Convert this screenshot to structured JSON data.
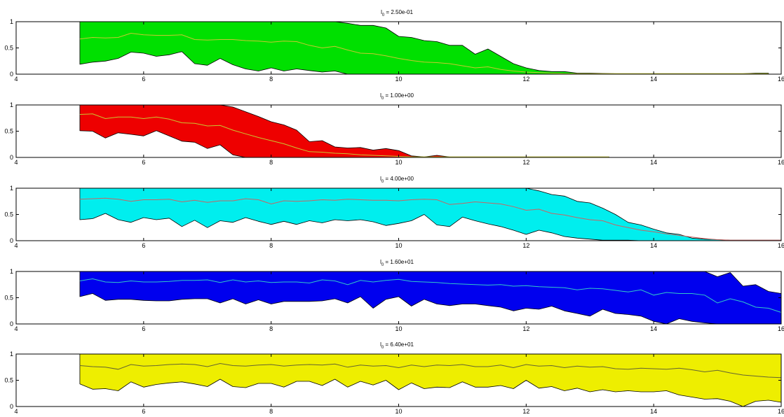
{
  "chart_data": [
    {
      "type": "area",
      "title_var": "l",
      "title_sub": "0",
      "title_value": " = 2.50e-01",
      "fill": "#00e000",
      "mean_color": "#c8c832",
      "xlim": [
        4,
        16
      ],
      "ylim": [
        0,
        1
      ],
      "xticks": [
        4,
        6,
        8,
        10,
        12,
        14,
        16
      ],
      "yticks": [
        0,
        0.5,
        1
      ],
      "xtick_labels": [
        "4",
        "6",
        "8",
        "10",
        "12",
        "14",
        "16"
      ],
      "ytick_labels": [
        "0",
        "0.5",
        "1"
      ],
      "x": [
        5.0,
        5.2,
        5.4,
        5.6,
        5.8,
        6.0,
        6.2,
        6.4,
        6.6,
        6.8,
        7.0,
        7.2,
        7.4,
        7.6,
        7.8,
        8.0,
        8.2,
        8.4,
        8.6,
        8.8,
        9.0,
        9.2,
        9.4,
        9.6,
        9.8,
        10.0,
        10.2,
        10.4,
        10.6,
        10.8,
        11.0,
        11.2,
        11.4,
        11.6,
        11.8,
        12.0,
        12.2,
        12.4,
        12.6,
        12.8,
        13.0,
        13.4,
        13.8,
        14.2,
        14.6,
        15.0,
        15.4,
        15.6,
        15.8
      ],
      "upper": [
        1,
        1,
        1,
        1,
        1,
        1,
        1,
        1,
        1,
        1,
        1,
        1,
        1,
        1,
        1,
        1,
        1,
        1,
        1,
        1,
        1,
        0.97,
        0.93,
        0.93,
        0.88,
        0.72,
        0.7,
        0.64,
        0.62,
        0.55,
        0.55,
        0.38,
        0.48,
        0.34,
        0.2,
        0.12,
        0.07,
        0.05,
        0.05,
        0.02,
        0.02,
        0.01,
        0.01,
        0.01,
        0.01,
        0.01,
        0.01,
        0.02,
        0.02
      ],
      "mean": [
        0.67,
        0.7,
        0.69,
        0.7,
        0.78,
        0.75,
        0.74,
        0.74,
        0.75,
        0.66,
        0.65,
        0.66,
        0.66,
        0.64,
        0.63,
        0.61,
        0.63,
        0.62,
        0.55,
        0.5,
        0.53,
        0.46,
        0.4,
        0.39,
        0.35,
        0.3,
        0.26,
        0.23,
        0.22,
        0.2,
        0.16,
        0.12,
        0.14,
        0.09,
        0.06,
        0.04,
        0.03,
        0.02,
        0.01,
        0.01,
        0.01,
        0.01,
        0.01,
        0.01,
        0.01,
        0.01,
        0.01,
        0.01,
        0.01
      ],
      "lower": [
        0.19,
        0.23,
        0.25,
        0.3,
        0.42,
        0.4,
        0.34,
        0.37,
        0.43,
        0.2,
        0.17,
        0.3,
        0.18,
        0.1,
        0.06,
        0.12,
        0.06,
        0.1,
        0.07,
        0.04,
        0.06,
        0,
        0,
        0,
        0,
        0,
        0,
        0,
        0,
        0,
        0,
        0,
        0,
        0,
        0,
        0,
        0,
        0,
        0,
        0,
        0,
        0,
        0,
        0,
        0,
        0,
        0,
        0,
        0
      ]
    },
    {
      "type": "area",
      "title_var": "l",
      "title_sub": "0",
      "title_value": " = 1.00e+00",
      "fill": "#ee0000",
      "mean_color": "#c8c832",
      "xlim": [
        4,
        16
      ],
      "ylim": [
        0,
        1
      ],
      "xticks": [
        4,
        6,
        8,
        10,
        12,
        14,
        16
      ],
      "yticks": [
        0,
        0.5,
        1
      ],
      "xtick_labels": [
        "4",
        "6",
        "8",
        "10",
        "12",
        "14",
        "16"
      ],
      "ytick_labels": [
        "0",
        "0.5",
        "1"
      ],
      "x": [
        5.0,
        5.2,
        5.4,
        5.6,
        5.8,
        6.0,
        6.2,
        6.4,
        6.6,
        6.8,
        7.0,
        7.2,
        7.4,
        7.6,
        7.8,
        8.0,
        8.2,
        8.4,
        8.6,
        8.8,
        9.0,
        9.2,
        9.4,
        9.6,
        9.8,
        10.0,
        10.2,
        10.4,
        10.6,
        10.8,
        11.0,
        11.5,
        12.0,
        12.5,
        13.0,
        13.3
      ],
      "upper": [
        1,
        1,
        1,
        1,
        1,
        1,
        1,
        1,
        1,
        1,
        1,
        1,
        0.96,
        0.87,
        0.78,
        0.68,
        0.62,
        0.52,
        0.3,
        0.32,
        0.2,
        0.18,
        0.19,
        0.14,
        0.17,
        0.13,
        0.03,
        0.01,
        0.04,
        0.01,
        0.01,
        0.01,
        0.01,
        0.01,
        0.01,
        0.01
      ],
      "mean": [
        0.82,
        0.83,
        0.74,
        0.77,
        0.77,
        0.74,
        0.77,
        0.73,
        0.66,
        0.65,
        0.6,
        0.61,
        0.52,
        0.45,
        0.38,
        0.32,
        0.26,
        0.18,
        0.11,
        0.1,
        0.08,
        0.07,
        0.05,
        0.04,
        0.03,
        0.02,
        0.01,
        0.01,
        0.01,
        0.01,
        0.01,
        0.01,
        0.01,
        0.01,
        0.01,
        0.01
      ],
      "lower": [
        0.51,
        0.5,
        0.37,
        0.47,
        0.44,
        0.41,
        0.51,
        0.41,
        0.31,
        0.29,
        0.17,
        0.24,
        0.05,
        0,
        0,
        0,
        0,
        0,
        0,
        0,
        0,
        0,
        0,
        0,
        0,
        0,
        0,
        0,
        0,
        0,
        0,
        0,
        0,
        0,
        0,
        0
      ]
    },
    {
      "type": "area",
      "title_var": "l",
      "title_sub": "0",
      "title_value": " = 4.00e+00",
      "fill": "#00eeee",
      "mean_color": "#c86464",
      "xlim": [
        4,
        16
      ],
      "ylim": [
        0,
        1
      ],
      "xticks": [
        4,
        6,
        8,
        10,
        12,
        14,
        16
      ],
      "yticks": [
        0,
        0.5,
        1
      ],
      "xtick_labels": [
        "4",
        "6",
        "8",
        "10",
        "12",
        "14",
        "16"
      ],
      "ytick_labels": [
        "0",
        "0.5",
        "1"
      ],
      "x": [
        5.0,
        5.2,
        5.4,
        5.6,
        5.8,
        6.0,
        6.2,
        6.4,
        6.6,
        6.8,
        7.0,
        7.2,
        7.4,
        7.6,
        7.8,
        8.0,
        8.2,
        8.4,
        8.6,
        8.8,
        9.0,
        9.2,
        9.4,
        9.6,
        9.8,
        10.0,
        10.2,
        10.4,
        10.6,
        10.8,
        11.0,
        11.2,
        11.4,
        11.6,
        11.8,
        12.0,
        12.2,
        12.4,
        12.6,
        12.8,
        13.0,
        13.2,
        13.4,
        13.6,
        13.8,
        14.0,
        14.2,
        14.4,
        14.6,
        14.8,
        15.0,
        15.2,
        15.4,
        15.6,
        15.8,
        16.0
      ],
      "upper": [
        1,
        1,
        1,
        1,
        1,
        1,
        1,
        1,
        1,
        1,
        1,
        1,
        1,
        1,
        1,
        1,
        1,
        1,
        1,
        1,
        1,
        1,
        1,
        1,
        1,
        1,
        1,
        1,
        1,
        1,
        1,
        1,
        1,
        1,
        1,
        1,
        0.95,
        0.88,
        0.85,
        0.75,
        0.72,
        0.62,
        0.5,
        0.35,
        0.3,
        0.22,
        0.15,
        0.12,
        0.05,
        0.03,
        0.02,
        0.01,
        0.01,
        0.01,
        0.01,
        0.01
      ],
      "mean": [
        0.79,
        0.8,
        0.81,
        0.79,
        0.75,
        0.78,
        0.78,
        0.79,
        0.74,
        0.77,
        0.73,
        0.76,
        0.76,
        0.8,
        0.78,
        0.7,
        0.76,
        0.75,
        0.76,
        0.78,
        0.77,
        0.79,
        0.78,
        0.77,
        0.77,
        0.76,
        0.78,
        0.79,
        0.78,
        0.69,
        0.71,
        0.74,
        0.72,
        0.7,
        0.65,
        0.58,
        0.6,
        0.52,
        0.49,
        0.44,
        0.4,
        0.38,
        0.3,
        0.25,
        0.2,
        0.17,
        0.13,
        0.1,
        0.07,
        0.04,
        0.02,
        0.01,
        0.01,
        0.01,
        0.01,
        0.01
      ],
      "lower": [
        0.4,
        0.42,
        0.52,
        0.4,
        0.35,
        0.44,
        0.4,
        0.43,
        0.27,
        0.39,
        0.25,
        0.38,
        0.35,
        0.44,
        0.37,
        0.31,
        0.37,
        0.31,
        0.38,
        0.34,
        0.4,
        0.38,
        0.4,
        0.36,
        0.29,
        0.33,
        0.38,
        0.5,
        0.3,
        0.27,
        0.45,
        0.38,
        0.32,
        0.27,
        0.2,
        0.12,
        0.2,
        0.15,
        0.08,
        0.05,
        0.03,
        0.01,
        0.01,
        0.01,
        0,
        0,
        0,
        0,
        0,
        0,
        0,
        0,
        0,
        0,
        0,
        0
      ]
    },
    {
      "type": "area",
      "title_var": "l",
      "title_sub": "0",
      "title_value": " = 1.60e+01",
      "fill": "#0000ee",
      "mean_color": "#32c8c8",
      "xlim": [
        4,
        16
      ],
      "ylim": [
        0,
        1
      ],
      "xticks": [
        4,
        6,
        8,
        10,
        12,
        14,
        16
      ],
      "yticks": [
        0,
        0.5,
        1
      ],
      "xtick_labels": [
        "4",
        "6",
        "8",
        "10",
        "12",
        "14",
        "16"
      ],
      "ytick_labels": [
        "0",
        "0.5",
        "1"
      ],
      "x": [
        5.0,
        5.2,
        5.4,
        5.6,
        5.8,
        6.0,
        6.2,
        6.4,
        6.6,
        6.8,
        7.0,
        7.2,
        7.4,
        7.6,
        7.8,
        8.0,
        8.2,
        8.4,
        8.6,
        8.8,
        9.0,
        9.2,
        9.4,
        9.6,
        9.8,
        10.0,
        10.2,
        10.4,
        10.6,
        10.8,
        11.0,
        11.2,
        11.4,
        11.6,
        11.8,
        12.0,
        12.2,
        12.4,
        12.6,
        12.8,
        13.0,
        13.2,
        13.4,
        13.6,
        13.8,
        14.0,
        14.2,
        14.4,
        14.6,
        14.8,
        15.0,
        15.2,
        15.4,
        15.6,
        15.8,
        16.0
      ],
      "upper": [
        1,
        1,
        1,
        1,
        1,
        1,
        1,
        1,
        1,
        1,
        1,
        1,
        1,
        1,
        1,
        1,
        1,
        1,
        1,
        1,
        1,
        1,
        1,
        1,
        1,
        1,
        1,
        1,
        1,
        1,
        1,
        1,
        1,
        1,
        1,
        1,
        1,
        1,
        1,
        1,
        1,
        1,
        1,
        1,
        1,
        1,
        1,
        1,
        1,
        1,
        0.9,
        0.98,
        0.72,
        0.75,
        0.62,
        0.58
      ],
      "mean": [
        0.82,
        0.86,
        0.8,
        0.79,
        0.82,
        0.8,
        0.8,
        0.81,
        0.83,
        0.83,
        0.84,
        0.79,
        0.84,
        0.8,
        0.82,
        0.79,
        0.8,
        0.8,
        0.78,
        0.84,
        0.82,
        0.75,
        0.83,
        0.8,
        0.83,
        0.85,
        0.81,
        0.8,
        0.79,
        0.77,
        0.76,
        0.75,
        0.74,
        0.75,
        0.72,
        0.73,
        0.71,
        0.7,
        0.69,
        0.65,
        0.68,
        0.67,
        0.64,
        0.61,
        0.65,
        0.55,
        0.6,
        0.58,
        0.58,
        0.55,
        0.4,
        0.48,
        0.42,
        0.32,
        0.3,
        0.22
      ],
      "lower": [
        0.52,
        0.58,
        0.45,
        0.47,
        0.47,
        0.45,
        0.44,
        0.44,
        0.47,
        0.48,
        0.48,
        0.4,
        0.48,
        0.38,
        0.46,
        0.38,
        0.43,
        0.43,
        0.43,
        0.44,
        0.48,
        0.4,
        0.52,
        0.3,
        0.47,
        0.52,
        0.34,
        0.47,
        0.38,
        0.35,
        0.38,
        0.38,
        0.35,
        0.32,
        0.25,
        0.3,
        0.28,
        0.34,
        0.25,
        0.2,
        0.15,
        0.28,
        0.2,
        0.18,
        0.15,
        0.05,
        0,
        0.1,
        0.05,
        0.02,
        0,
        0,
        0,
        0,
        0,
        0
      ]
    },
    {
      "type": "area",
      "title_var": "l",
      "title_sub": "0",
      "title_value": " = 6.40e+01",
      "fill": "#eeee00",
      "mean_color": "#646432",
      "xlim": [
        4,
        16
      ],
      "ylim": [
        0,
        1
      ],
      "xticks": [
        4,
        6,
        8,
        10,
        12,
        14,
        16
      ],
      "yticks": [
        0,
        0.5,
        1
      ],
      "xtick_labels": [
        "4",
        "6",
        "8",
        "10",
        "12",
        "14",
        "16"
      ],
      "ytick_labels": [
        "0",
        "0.5",
        "1"
      ],
      "x": [
        5.0,
        5.2,
        5.4,
        5.6,
        5.8,
        6.0,
        6.2,
        6.4,
        6.6,
        6.8,
        7.0,
        7.2,
        7.4,
        7.6,
        7.8,
        8.0,
        8.2,
        8.4,
        8.6,
        8.8,
        9.0,
        9.2,
        9.4,
        9.6,
        9.8,
        10.0,
        10.2,
        10.4,
        10.6,
        10.8,
        11.0,
        11.2,
        11.4,
        11.6,
        11.8,
        12.0,
        12.2,
        12.4,
        12.6,
        12.8,
        13.0,
        13.2,
        13.4,
        13.6,
        13.8,
        14.0,
        14.2,
        14.4,
        14.6,
        14.8,
        15.0,
        15.2,
        15.4,
        15.6,
        15.8,
        16.0
      ],
      "upper": [
        1,
        1,
        1,
        1,
        1,
        1,
        1,
        1,
        1,
        1,
        1,
        1,
        1,
        1,
        1,
        1,
        1,
        1,
        1,
        1,
        1,
        1,
        1,
        1,
        1,
        1,
        1,
        1,
        1,
        1,
        1,
        1,
        1,
        1,
        1,
        1,
        1,
        1,
        1,
        1,
        1,
        1,
        1,
        1,
        1,
        1,
        1,
        1,
        1,
        1,
        1,
        1,
        1,
        1,
        1,
        1
      ],
      "mean": [
        0.78,
        0.76,
        0.75,
        0.71,
        0.8,
        0.77,
        0.78,
        0.8,
        0.81,
        0.8,
        0.76,
        0.82,
        0.78,
        0.77,
        0.79,
        0.8,
        0.77,
        0.79,
        0.8,
        0.79,
        0.81,
        0.75,
        0.79,
        0.77,
        0.78,
        0.74,
        0.79,
        0.76,
        0.79,
        0.78,
        0.8,
        0.76,
        0.76,
        0.79,
        0.74,
        0.8,
        0.77,
        0.78,
        0.74,
        0.77,
        0.75,
        0.76,
        0.72,
        0.71,
        0.73,
        0.72,
        0.71,
        0.73,
        0.7,
        0.66,
        0.69,
        0.64,
        0.6,
        0.58,
        0.56,
        0.55
      ],
      "lower": [
        0.43,
        0.33,
        0.34,
        0.3,
        0.47,
        0.37,
        0.42,
        0.45,
        0.47,
        0.43,
        0.38,
        0.52,
        0.38,
        0.36,
        0.44,
        0.44,
        0.37,
        0.48,
        0.48,
        0.4,
        0.52,
        0.37,
        0.48,
        0.41,
        0.5,
        0.32,
        0.45,
        0.34,
        0.37,
        0.36,
        0.47,
        0.37,
        0.37,
        0.4,
        0.34,
        0.5,
        0.35,
        0.38,
        0.3,
        0.35,
        0.28,
        0.32,
        0.28,
        0.3,
        0.28,
        0.28,
        0.3,
        0.22,
        0.18,
        0.14,
        0.15,
        0.1,
        0,
        0.1,
        0.12,
        0.08
      ]
    }
  ]
}
